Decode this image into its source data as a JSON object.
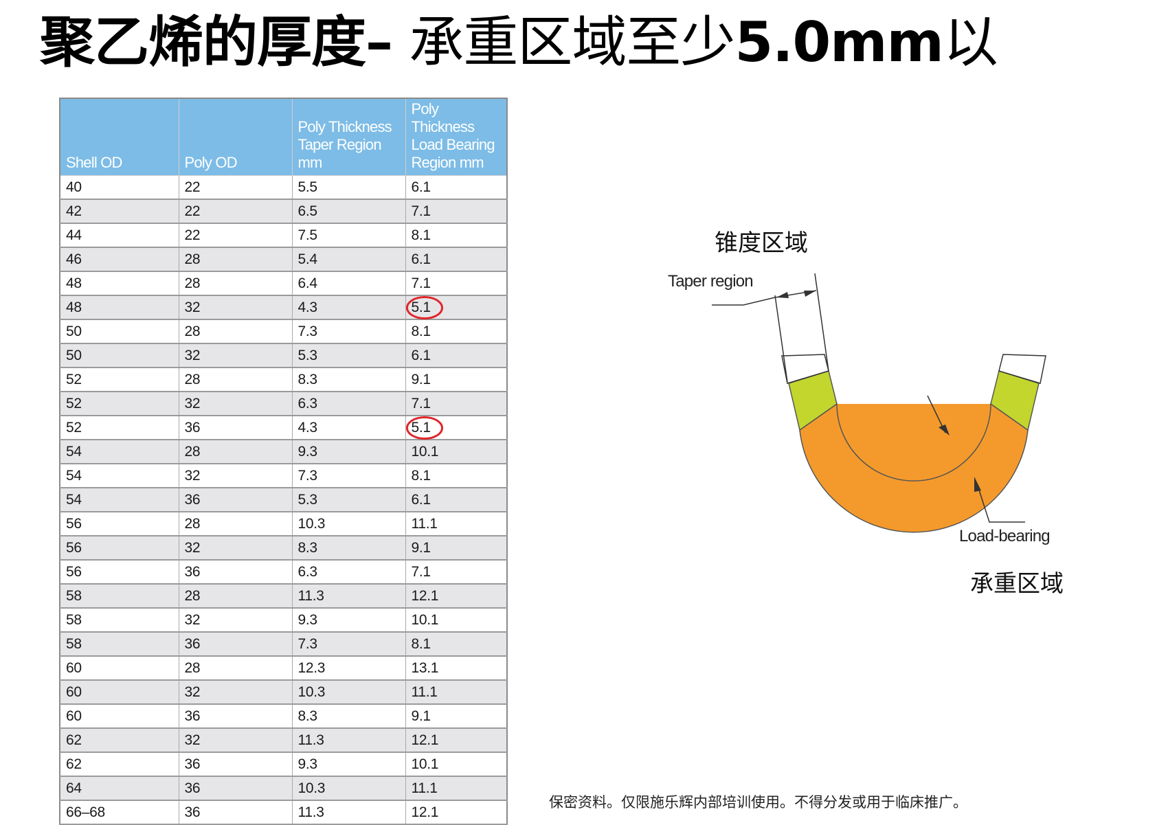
{
  "title": {
    "part1": "聚乙烯的厚度–",
    "part2": " 承重区域至少",
    "part3": "5.0mm",
    "part4": "以"
  },
  "table": {
    "headers": [
      [
        "Shell OD"
      ],
      [
        "Poly OD"
      ],
      [
        "Poly Thickness",
        "Taper Region",
        "mm"
      ],
      [
        "Poly",
        "Thickness",
        "Load Bearing",
        "Region mm"
      ]
    ],
    "rows": [
      [
        "40",
        "22",
        "5.5",
        "6.1"
      ],
      [
        "42",
        "22",
        "6.5",
        "7.1"
      ],
      [
        "44",
        "22",
        "7.5",
        "8.1"
      ],
      [
        "46",
        "28",
        "5.4",
        "6.1"
      ],
      [
        "48",
        "28",
        "6.4",
        "7.1"
      ],
      [
        "48",
        "32",
        "4.3",
        "5.1"
      ],
      [
        "50",
        "28",
        "7.3",
        "8.1"
      ],
      [
        "50",
        "32",
        "5.3",
        "6.1"
      ],
      [
        "52",
        "28",
        "8.3",
        "9.1"
      ],
      [
        "52",
        "32",
        "6.3",
        "7.1"
      ],
      [
        "52",
        "36",
        "4.3",
        "5.1"
      ],
      [
        "54",
        "28",
        "9.3",
        "10.1"
      ],
      [
        "54",
        "32",
        "7.3",
        "8.1"
      ],
      [
        "54",
        "36",
        "5.3",
        "6.1"
      ],
      [
        "56",
        "28",
        "10.3",
        "11.1"
      ],
      [
        "56",
        "32",
        "8.3",
        "9.1"
      ],
      [
        "56",
        "36",
        "6.3",
        "7.1"
      ],
      [
        "58",
        "28",
        "11.3",
        "12.1"
      ],
      [
        "58",
        "32",
        "9.3",
        "10.1"
      ],
      [
        "58",
        "36",
        "7.3",
        "8.1"
      ],
      [
        "60",
        "28",
        "12.3",
        "13.1"
      ],
      [
        "60",
        "32",
        "10.3",
        "11.1"
      ],
      [
        "60",
        "36",
        "8.3",
        "9.1"
      ],
      [
        "62",
        "32",
        "11.3",
        "12.1"
      ],
      [
        "62",
        "36",
        "9.3",
        "10.1"
      ],
      [
        "64",
        "36",
        "10.3",
        "11.1"
      ],
      [
        "66–68",
        "36",
        "11.3",
        "12.1"
      ]
    ],
    "highlighted_rows": [
      5,
      10
    ],
    "highlight_color": "#e0262b",
    "header_color": "#7dbce6",
    "stripe_color": "#e6e6e8"
  },
  "diagram": {
    "taper_label_cn": "锥度区域",
    "taper_label_en": "Taper region",
    "load_label_en": "Load-bearing",
    "load_label_cn": "承重区域",
    "taper_color": "#c2d62e",
    "load_color": "#f49a2c"
  },
  "footer": "保密资料。仅限施乐辉内部培训使用。不得分发或用于临床推广。"
}
